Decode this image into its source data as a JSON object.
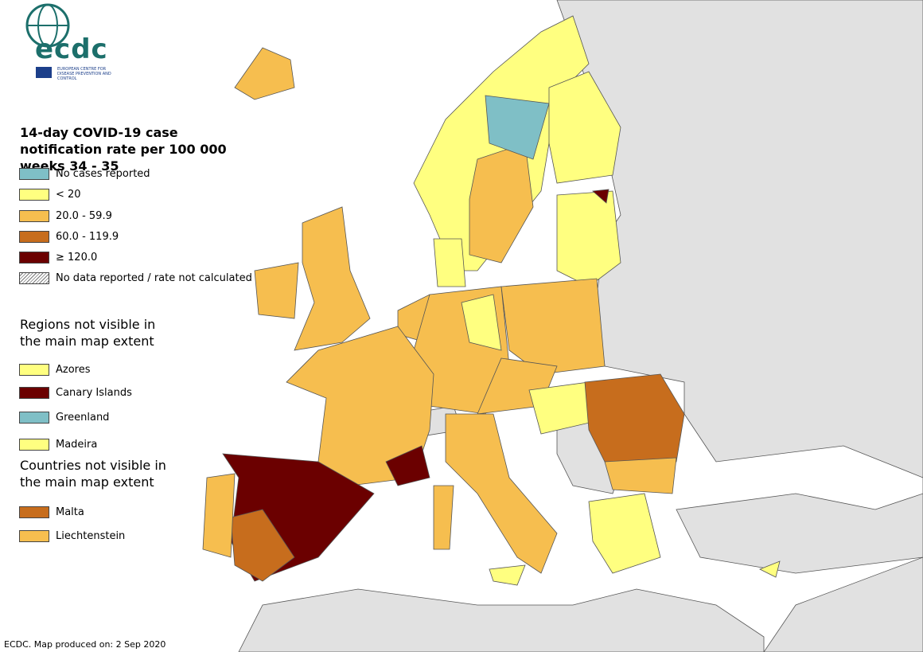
{
  "logo": {
    "name": "ecdc",
    "subtitle": "EUROPEAN CENTRE FOR DISEASE PREVENTION AND CONTROL"
  },
  "legend": {
    "title": "14-day COVID-19 case notification rate per 100 000 weeks 34 - 35",
    "items": [
      {
        "label": "No cases reported",
        "color": "#7fbfc6"
      },
      {
        "label": "< 20",
        "color": "#ffff80"
      },
      {
        "label": "20.0 - 59.9",
        "color": "#f6be4f"
      },
      {
        "label": "60.0 - 119.9",
        "color": "#c76d1d"
      },
      {
        "label": "≥ 120.0",
        "color": "#6b0000"
      },
      {
        "label": "No data reported / rate not calculated",
        "hatch": true
      }
    ]
  },
  "regions": {
    "title": "Regions not visible in the main map extent",
    "items": [
      {
        "label": "Azores",
        "color": "#ffff80"
      },
      {
        "label": "Canary Islands",
        "color": "#6b0000"
      },
      {
        "label": "Greenland",
        "color": "#7fbfc6"
      },
      {
        "label": "Madeira",
        "color": "#ffff80"
      }
    ]
  },
  "countries": {
    "title": "Countries not visible in the main map extent",
    "items": [
      {
        "label": "Malta",
        "color": "#c76d1d"
      },
      {
        "label": "Liechtenstein",
        "color": "#f6be4f"
      }
    ]
  },
  "footer": "ECDC. Map produced on: 2 Sep 2020"
}
